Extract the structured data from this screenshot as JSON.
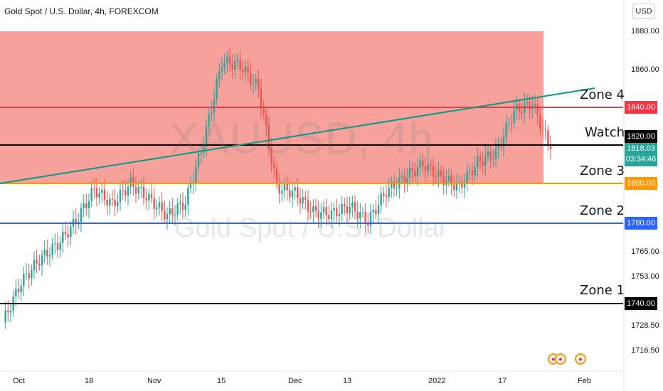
{
  "header": {
    "title": "Gold Spot / U.S. Dollar, 4h, FOREXCOM",
    "currency_button": "USD"
  },
  "watermark": {
    "symbol": "XAUUSD, 4h",
    "name": "Gold Spot / U.S. Dollar"
  },
  "zones": {
    "zone4": "Zone 4",
    "watch": "Watch",
    "zone3": "Zone 3",
    "zone2": "Zone 2",
    "zone1": "Zone 1"
  },
  "price_tags": {
    "zone4": "1840.00",
    "watch": "1820.00",
    "current_price": "1818.03",
    "countdown": "03:34:46",
    "zone3": "1800.00",
    "zone2": "1780.00",
    "zone1": "1740.00"
  },
  "colors": {
    "zone_box": "#f6a19b",
    "zone4_line": "#f23645",
    "watch_line": "#000000",
    "zone3_line": "#ff9800",
    "zone2_line": "#2962ff",
    "zone1_line": "#000000",
    "trendline": "#089981",
    "up_candle": "#26a69a",
    "down_candle": "#ef5350",
    "current_price_tag": "#26a69a"
  },
  "icons": {
    "event": "us-flag-event-icon"
  },
  "chart_data": {
    "type": "candlestick",
    "title": "Gold Spot / U.S. Dollar, 4h, FOREXCOM",
    "y_axis_ticks": [
      "1880.00",
      "1860.00",
      "1765.00",
      "1753.00",
      "1728.50",
      "1716.50"
    ],
    "x_axis_ticks": [
      "Oct",
      "18",
      "Nov",
      "15",
      "Dec",
      "13",
      "2022",
      "17",
      "Feb"
    ],
    "ylim": [
      1708,
      1888
    ],
    "horizontal_levels": [
      {
        "label": "Zone 4",
        "value": 1840
      },
      {
        "label": "Watch",
        "value": 1820
      },
      {
        "label": "Zone 3",
        "value": 1800
      },
      {
        "label": "Zone 2",
        "value": 1780
      },
      {
        "label": "Zone 1",
        "value": 1740
      }
    ],
    "shaded_zone": {
      "from": 1800,
      "to": 1880
    },
    "trendline": {
      "start": {
        "date": "2021-09-24",
        "price": 1800
      },
      "end": {
        "date": "2022-01-27",
        "price": 1850
      }
    },
    "last_price": 1818.03,
    "series": [
      {
        "x": [
          "Sep 24",
          "Sep 29",
          "Oct 4",
          "Oct 8",
          "Oct 13",
          "Oct 17",
          "Oct 21",
          "Oct 26",
          "Oct 30",
          "Nov 3",
          "Nov 7",
          "Nov 11",
          "Nov 15",
          "Nov 19",
          "Nov 23",
          "Nov 27",
          "Dec 1",
          "Dec 5",
          "Dec 9",
          "Dec 13",
          "Dec 17",
          "Dec 21",
          "Dec 26",
          "Dec 30",
          "Jan 3",
          "Jan 7",
          "Jan 11",
          "Jan 15",
          "Jan 19",
          "Jan 23",
          "Jan 27"
        ],
        "values": [
          1727,
          1748,
          1760,
          1768,
          1780,
          1797,
          1789,
          1800,
          1792,
          1783,
          1790,
          1822,
          1864,
          1862,
          1850,
          1798,
          1795,
          1785,
          1784,
          1788,
          1780,
          1796,
          1803,
          1810,
          1803,
          1798,
          1811,
          1816,
          1838,
          1842,
          1818
        ]
      }
    ]
  }
}
